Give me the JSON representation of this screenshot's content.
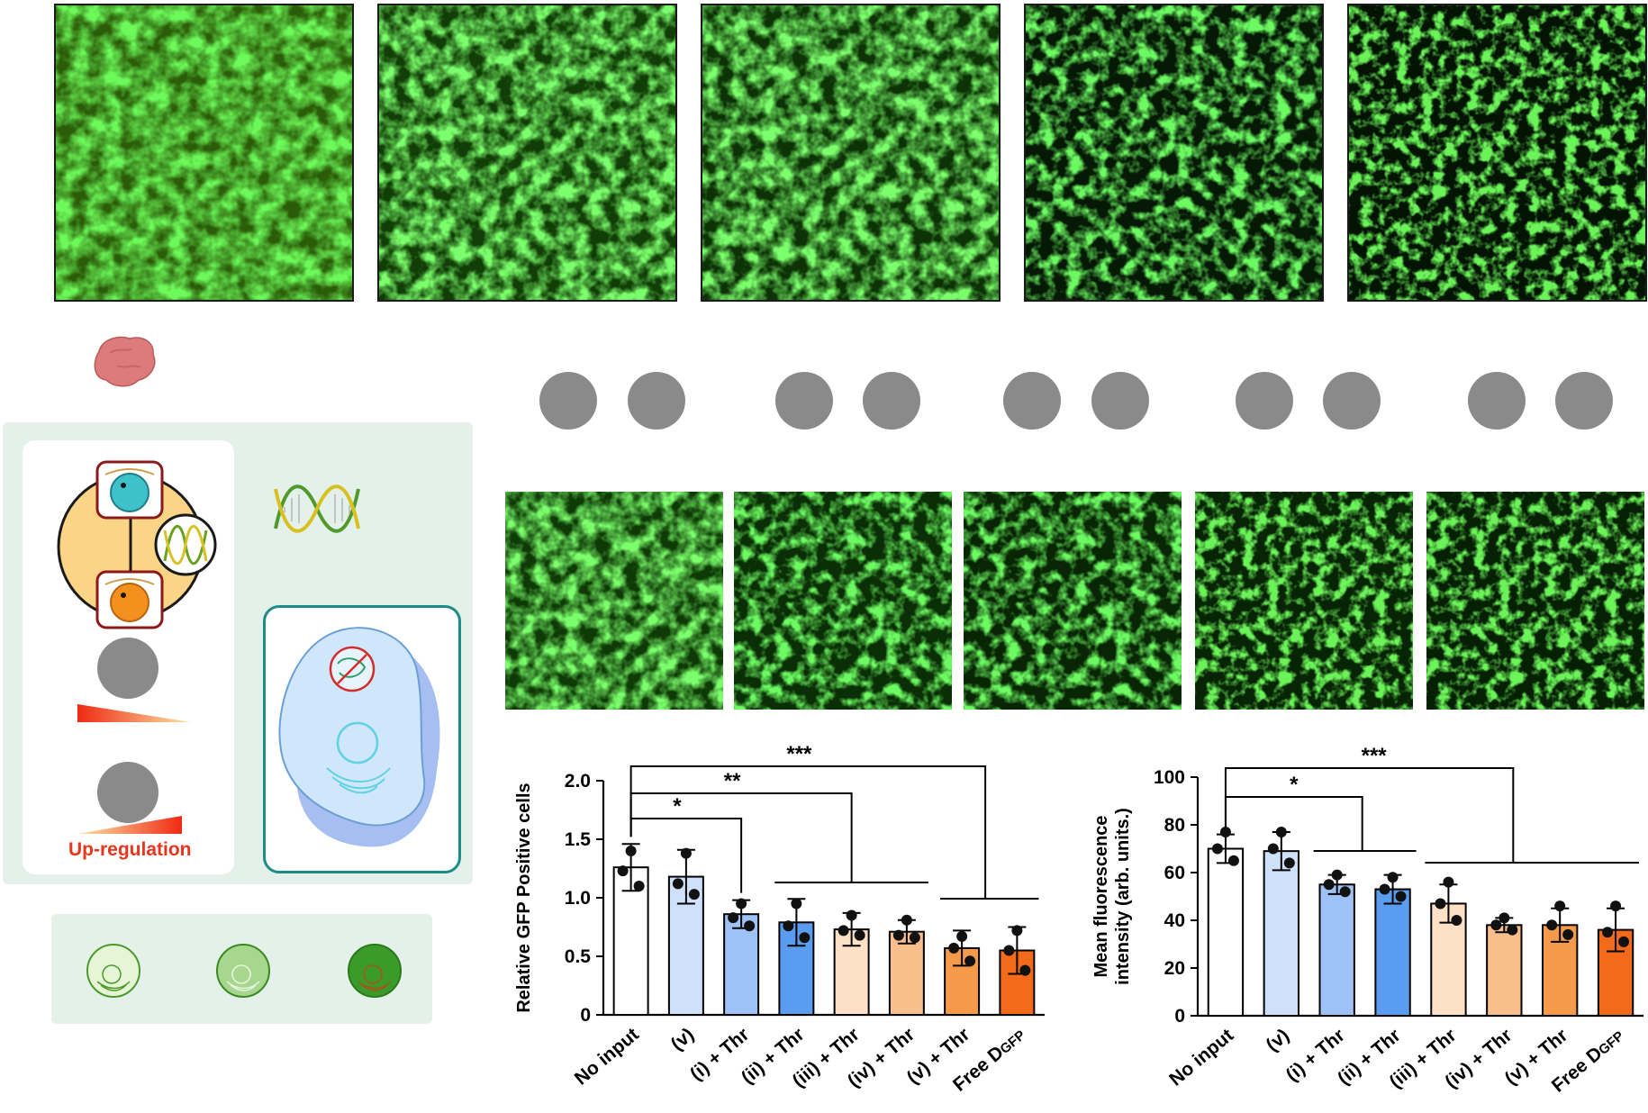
{
  "labels": {
    "upregulation": "Up-regulation"
  },
  "panels": {
    "top_images": [
      "top-1",
      "top-2",
      "top-3",
      "top-4",
      "top-5"
    ],
    "mid_images": [
      "mid-1",
      "mid-2",
      "mid-3",
      "mid-4",
      "mid-5"
    ],
    "dots_pairs": 5
  },
  "colors": {
    "gfp": "#3ee83a",
    "panel_bg": "#e3f1ea",
    "teal": "#1e8c86",
    "accent_red": "#e8351b"
  },
  "chart_data": [
    {
      "type": "bar",
      "ylabel": "Relative GFP Positive cells",
      "ylim": [
        0,
        2.0
      ],
      "yticks": [
        "0",
        "0.5",
        "1.0",
        "1.5",
        "2.0"
      ],
      "categories": [
        "No input",
        "(v)",
        "(i) + Thr",
        "(ii) + Thr",
        "(iii) + Thr",
        "(iv) + Thr",
        "(v) + Thr",
        "Free D"
      ],
      "category_subscripts": [
        "",
        "",
        "",
        "",
        "",
        "",
        "",
        "GFP"
      ],
      "values": [
        1.26,
        1.18,
        0.86,
        0.79,
        0.73,
        0.71,
        0.57,
        0.55
      ],
      "errors": [
        0.2,
        0.23,
        0.12,
        0.2,
        0.14,
        0.1,
        0.15,
        0.2
      ],
      "bar_colors": [
        "#ffffff",
        "#cfe0fb",
        "#9ec2f5",
        "#5a9cef",
        "#fde0c6",
        "#f8bf8c",
        "#f59a48",
        "#f36a1a"
      ],
      "points": [
        [
          1.4,
          1.23,
          1.1
        ],
        [
          1.38,
          1.12,
          1.03
        ],
        [
          0.95,
          0.83,
          0.76
        ],
        [
          0.95,
          0.76,
          0.66
        ],
        [
          0.85,
          0.72,
          0.68
        ],
        [
          0.81,
          0.68,
          0.66
        ],
        [
          0.67,
          0.57,
          0.46
        ],
        [
          0.72,
          0.55,
          0.38
        ]
      ],
      "significance": [
        {
          "label": "*",
          "from": 0,
          "to": 2
        },
        {
          "label": "**",
          "from": 0,
          "to": "group-ii-iv"
        },
        {
          "label": "***",
          "from": 0,
          "to": "group-v-free"
        }
      ]
    },
    {
      "type": "bar",
      "ylabel": "Mean fluorescence intensity (arb. units.)",
      "ylabel_line1": "Mean fluorescence",
      "ylabel_line2": "intensity (arb. units.)",
      "ylim": [
        0,
        100
      ],
      "yticks": [
        "0",
        "20",
        "40",
        "60",
        "80",
        "100"
      ],
      "categories": [
        "No input",
        "(v)",
        "(i) + Thr",
        "(ii) + Thr",
        "(iii) + Thr",
        "(iv) + Thr",
        "(v) + Thr",
        "Free D"
      ],
      "category_subscripts": [
        "",
        "",
        "",
        "",
        "",
        "",
        "",
        "GFP"
      ],
      "values": [
        70,
        69,
        55,
        53,
        47,
        38,
        38,
        36
      ],
      "errors": [
        6,
        8,
        4,
        6,
        8,
        3,
        7,
        9
      ],
      "bar_colors": [
        "#ffffff",
        "#cfe0fb",
        "#9ec2f5",
        "#5a9cef",
        "#fde0c6",
        "#f8bf8c",
        "#f59a48",
        "#f36a1a"
      ],
      "points": [
        [
          77,
          70,
          65
        ],
        [
          77,
          70,
          64
        ],
        [
          59,
          55,
          52
        ],
        [
          58,
          53,
          50
        ],
        [
          56,
          47,
          40
        ],
        [
          41,
          38,
          36
        ],
        [
          46,
          38,
          34
        ],
        [
          46,
          35,
          31
        ]
      ],
      "significance": [
        {
          "label": "*",
          "from": 0,
          "to": "group-i-ii"
        },
        {
          "label": "***",
          "from": 0,
          "to": "group-iii-free"
        }
      ]
    }
  ]
}
